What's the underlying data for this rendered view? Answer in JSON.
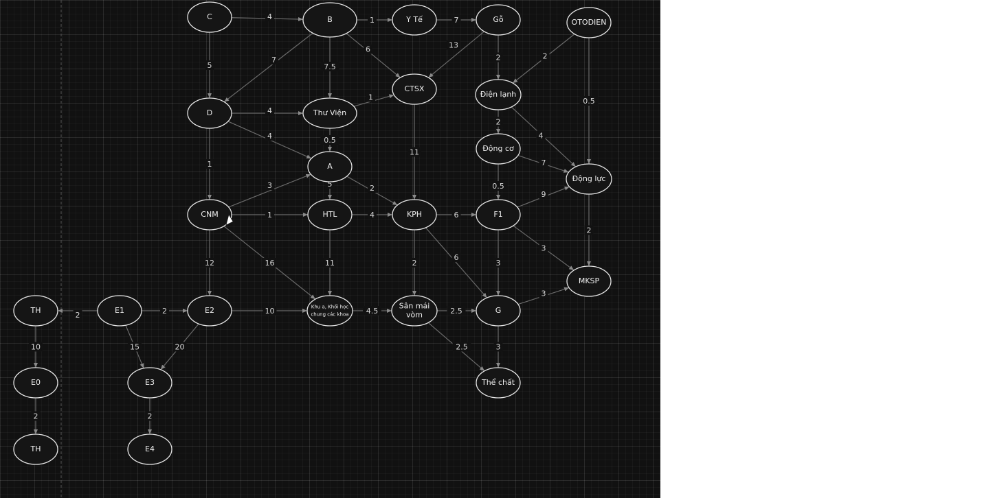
{
  "nodes": [
    {
      "id": "C",
      "label": "C"
    },
    {
      "id": "B",
      "label": "B"
    },
    {
      "id": "YTE",
      "label": "Y Tế"
    },
    {
      "id": "GO",
      "label": "Gỗ"
    },
    {
      "id": "OTODIEN",
      "label": "OTODIEN"
    },
    {
      "id": "CTSX",
      "label": "CTSX"
    },
    {
      "id": "DIENLANH",
      "label": "Điện lạnh"
    },
    {
      "id": "D",
      "label": "D"
    },
    {
      "id": "THUVIEN",
      "label": "Thư Viện"
    },
    {
      "id": "DONGCO",
      "label": "Động cơ"
    },
    {
      "id": "A",
      "label": "A"
    },
    {
      "id": "DONGLUC",
      "label": "Động lực"
    },
    {
      "id": "CNM",
      "label": "CNM"
    },
    {
      "id": "HTL",
      "label": "HTL"
    },
    {
      "id": "KPH",
      "label": "KPH"
    },
    {
      "id": "F1",
      "label": "F1"
    },
    {
      "id": "MKSP",
      "label": "MKSP"
    },
    {
      "id": "TH1",
      "label": "TH"
    },
    {
      "id": "E1",
      "label": "E1"
    },
    {
      "id": "E2",
      "label": "E2"
    },
    {
      "id": "KHUA",
      "label": [
        "Khu a, Khối học",
        "chung các khoa"
      ]
    },
    {
      "id": "SAN",
      "label": [
        "Sân mái",
        "vòm"
      ]
    },
    {
      "id": "G",
      "label": "G"
    },
    {
      "id": "E0",
      "label": "E0"
    },
    {
      "id": "E3",
      "label": "E3"
    },
    {
      "id": "THECHAT",
      "label": "Thể chất"
    },
    {
      "id": "TH2",
      "label": "TH"
    },
    {
      "id": "E4",
      "label": "E4"
    }
  ],
  "edges": [
    {
      "from": "C",
      "to": "B",
      "weight": "4"
    },
    {
      "from": "B",
      "to": "YTE",
      "weight": "1"
    },
    {
      "from": "YTE",
      "to": "GO",
      "weight": "7"
    },
    {
      "from": "C",
      "to": "D",
      "weight": "5"
    },
    {
      "from": "B",
      "to": "D",
      "weight": "7"
    },
    {
      "from": "B",
      "to": "THUVIEN",
      "weight": "7.5"
    },
    {
      "from": "B",
      "to": "CTSX",
      "weight": "6"
    },
    {
      "from": "GO",
      "to": "CTSX",
      "weight": "13"
    },
    {
      "from": "GO",
      "to": "DIENLANH",
      "weight": "2"
    },
    {
      "from": "OTODIEN",
      "to": "DIENLANH",
      "weight": "2"
    },
    {
      "from": "OTODIEN",
      "to": "DONGLUC",
      "weight": "0.5"
    },
    {
      "from": "THUVIEN",
      "to": "CTSX",
      "weight": "1"
    },
    {
      "from": "D",
      "to": "THUVIEN",
      "weight": "4"
    },
    {
      "from": "D",
      "to": "A",
      "weight": "4"
    },
    {
      "from": "THUVIEN",
      "to": "A",
      "weight": "0.5"
    },
    {
      "from": "CTSX",
      "to": "KPH",
      "weight": "11"
    },
    {
      "from": "DIENLANH",
      "to": "DONGCO",
      "weight": "2"
    },
    {
      "from": "DIENLANH",
      "to": "DONGLUC",
      "weight": "4"
    },
    {
      "from": "DONGCO",
      "to": "DONGLUC",
      "weight": "7"
    },
    {
      "from": "DONGCO",
      "to": "F1",
      "weight": "0.5"
    },
    {
      "from": "D",
      "to": "CNM",
      "weight": "1"
    },
    {
      "from": "CNM",
      "to": "A",
      "weight": "3"
    },
    {
      "from": "A",
      "to": "HTL",
      "weight": "5"
    },
    {
      "from": "A",
      "to": "KPH",
      "weight": "2"
    },
    {
      "from": "CNM",
      "to": "HTL",
      "weight": "1"
    },
    {
      "from": "HTL",
      "to": "KPH",
      "weight": "4"
    },
    {
      "from": "KPH",
      "to": "F1",
      "weight": "6"
    },
    {
      "from": "F1",
      "to": "DONGLUC",
      "weight": "9"
    },
    {
      "from": "DONGLUC",
      "to": "MKSP",
      "weight": "2"
    },
    {
      "from": "CNM",
      "to": "E2",
      "weight": "12"
    },
    {
      "from": "CNM",
      "to": "KHUA",
      "weight": "16"
    },
    {
      "from": "HTL",
      "to": "KHUA",
      "weight": "11"
    },
    {
      "from": "KPH",
      "to": "SAN",
      "weight": "2"
    },
    {
      "from": "KPH",
      "to": "G",
      "weight": "6"
    },
    {
      "from": "F1",
      "to": "G",
      "weight": "3"
    },
    {
      "from": "F1",
      "to": "MKSP",
      "weight": "3"
    },
    {
      "from": "G",
      "to": "MKSP",
      "weight": "3"
    },
    {
      "from": "E1",
      "to": "TH1",
      "weight": "2"
    },
    {
      "from": "E1",
      "to": "E2",
      "weight": "2"
    },
    {
      "from": "E2",
      "to": "KHUA",
      "weight": "10"
    },
    {
      "from": "KHUA",
      "to": "SAN",
      "weight": "4.5"
    },
    {
      "from": "SAN",
      "to": "G",
      "weight": "2.5"
    },
    {
      "from": "SAN",
      "to": "THECHAT",
      "weight": "2.5"
    },
    {
      "from": "G",
      "to": "THECHAT",
      "weight": "3"
    },
    {
      "from": "TH1",
      "to": "E0",
      "weight": "10"
    },
    {
      "from": "E1",
      "to": "E3",
      "weight": "15"
    },
    {
      "from": "E2",
      "to": "E3",
      "weight": "20"
    },
    {
      "from": "E0",
      "to": "TH2",
      "weight": "2"
    },
    {
      "from": "E3",
      "to": "E4",
      "weight": "2"
    }
  ]
}
